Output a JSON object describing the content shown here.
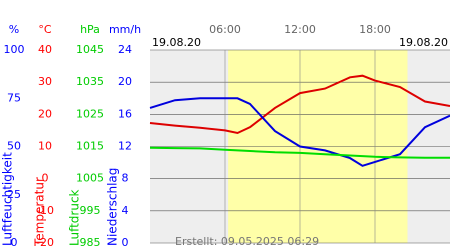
{
  "chart_data": {
    "type": "line",
    "date_left": "19.08.20",
    "date_right": "19.08.20",
    "footer": "Erstellt: 09.05.2025 06:29",
    "xlim": [
      0,
      24
    ],
    "xticks": [
      {
        "value": 6,
        "label": "06:00"
      },
      {
        "value": 12,
        "label": "12:00"
      },
      {
        "value": 18,
        "label": "18:00"
      }
    ],
    "daylight": [
      6.25,
      20.6
    ],
    "grid": true,
    "axes": [
      {
        "unit": "%",
        "label": "Luftfeuchtigkeit",
        "color": "#0000ff",
        "ylim": [
          0,
          100
        ],
        "yticks": [
          0,
          25,
          50,
          75,
          100
        ]
      },
      {
        "unit": "°C",
        "label": "Temperatur",
        "color": "#ff0000",
        "ylim": [
          -20,
          40
        ],
        "yticks": [
          -20,
          -10,
          0,
          10,
          20,
          30,
          40
        ]
      },
      {
        "unit": "hPa",
        "label": "Luftdruck",
        "color": "#00cc00",
        "ylim": [
          985,
          1045
        ],
        "yticks": [
          985,
          995,
          1005,
          1015,
          1025,
          1035,
          1045
        ]
      },
      {
        "unit": "mm/h",
        "label": "Niederschlag",
        "color": "#0000ff",
        "ylim": [
          0,
          24
        ],
        "yticks": [
          0,
          4,
          8,
          12,
          16,
          20,
          24
        ]
      }
    ],
    "x": [
      0,
      2,
      4,
      6,
      7,
      8,
      10,
      12,
      14,
      16,
      17,
      18,
      20,
      22,
      24
    ],
    "series": [
      {
        "name": "Temperatur",
        "axis": 1,
        "color": "#dd0000",
        "values": [
          17.3,
          16.5,
          15.8,
          15,
          14.2,
          16,
          22,
          26.6,
          28,
          31.5,
          32,
          30.5,
          28.5,
          24,
          22.6
        ]
      },
      {
        "name": "Luftfeuchtigkeit",
        "axis": 0,
        "color": "#0000dd",
        "values": [
          70,
          74,
          75,
          75,
          75,
          72,
          58,
          50,
          48,
          44,
          40,
          42,
          46,
          60,
          66
        ]
      },
      {
        "name": "Luftdruck",
        "axis": 2,
        "color": "#00dd00",
        "values": [
          1014.6,
          1014.5,
          1014.4,
          1014,
          1013.8,
          1013.6,
          1013.2,
          1013,
          1012.6,
          1012.2,
          1012,
          1011.8,
          1011.6,
          1011.5,
          1011.5
        ]
      }
    ]
  }
}
